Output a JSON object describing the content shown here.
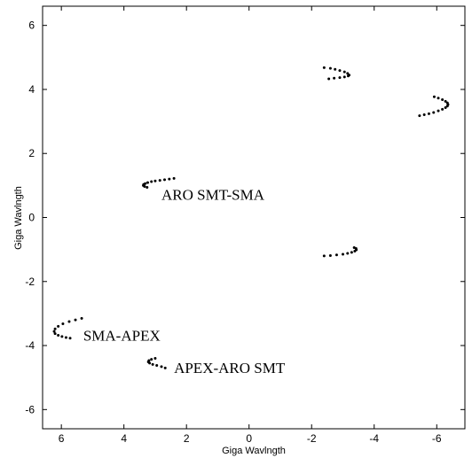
{
  "chart_data": {
    "type": "scatter",
    "xlabel": "Giga Wavlngth",
    "ylabel": "Giga Wavlngth",
    "xlim": [
      6.6,
      -6.9
    ],
    "ylim": [
      -6.6,
      6.6
    ],
    "xticks": [
      6,
      4,
      2,
      0,
      -2,
      -4,
      -6
    ],
    "yticks": [
      -6,
      -4,
      -2,
      0,
      2,
      4,
      6
    ],
    "xtick_labels": [
      "6",
      "4",
      "2",
      "0",
      "-2",
      "-4",
      "-6"
    ],
    "ytick_labels": [
      "-6",
      "-4",
      "-2",
      "0",
      "2",
      "4",
      "6"
    ],
    "grid": false,
    "dot_color": "#000000",
    "series": [
      {
        "x": [
          2.4,
          2.55,
          2.7,
          2.85,
          3.0,
          3.12,
          3.24,
          3.32,
          3.37,
          3.38,
          3.34,
          3.26
        ],
        "y": [
          1.22,
          1.2,
          1.18,
          1.16,
          1.14,
          1.12,
          1.09,
          1.06,
          1.03,
          1.0,
          0.97,
          0.94
        ]
      },
      {
        "x": [
          -2.4,
          -2.6,
          -2.75,
          -2.9,
          -3.05,
          -3.15,
          -3.2,
          -3.17,
          -3.05,
          -2.9,
          -2.72,
          -2.55
        ],
        "y": [
          4.68,
          4.66,
          4.63,
          4.59,
          4.55,
          4.5,
          4.45,
          4.42,
          4.39,
          4.37,
          4.35,
          4.33
        ],
        "label": "APEX-ARO SMT"
      },
      {
        "x": [
          -2.4,
          -2.6,
          -2.8,
          -3.0,
          -3.15,
          -3.28,
          -3.38,
          -3.43,
          -3.42,
          -3.36
        ],
        "y": [
          -1.2,
          -1.19,
          -1.17,
          -1.15,
          -1.12,
          -1.09,
          -1.05,
          -1.01,
          -0.97,
          -0.94
        ]
      },
      {
        "x": [
          -5.45,
          -5.6,
          -5.75,
          -5.9,
          -6.05,
          -6.18,
          -6.28,
          -6.34,
          -6.36,
          -6.34,
          -6.28,
          -6.18,
          -6.05,
          -5.92
        ],
        "y": [
          3.18,
          3.21,
          3.24,
          3.28,
          3.33,
          3.38,
          3.43,
          3.48,
          3.53,
          3.58,
          3.63,
          3.68,
          3.73,
          3.77
        ],
        "label": "SMA-APEX"
      },
      {
        "x": [
          3.0,
          3.12,
          3.2,
          3.22,
          3.18,
          3.08,
          2.95,
          2.8,
          2.68
        ],
        "y": [
          -4.4,
          -4.43,
          -4.47,
          -4.51,
          -4.55,
          -4.59,
          -4.62,
          -4.66,
          -4.7
        ]
      },
      {
        "x": [
          5.35,
          5.55,
          5.75,
          5.95,
          6.1,
          6.2,
          6.23,
          6.2,
          6.1,
          5.98,
          5.85,
          5.72
        ],
        "y": [
          -3.15,
          -3.2,
          -3.25,
          -3.32,
          -3.4,
          -3.48,
          -3.56,
          -3.63,
          -3.68,
          -3.72,
          -3.75,
          -3.77
        ]
      }
    ],
    "annotations": [
      {
        "text": "ARO SMT-SMA",
        "x": 2.8,
        "y": 0.55
      },
      {
        "text": "SMA-APEX",
        "x": 5.3,
        "y": -3.85
      },
      {
        "text": "APEX-ARO SMT",
        "x": 2.4,
        "y": -4.85
      }
    ]
  }
}
